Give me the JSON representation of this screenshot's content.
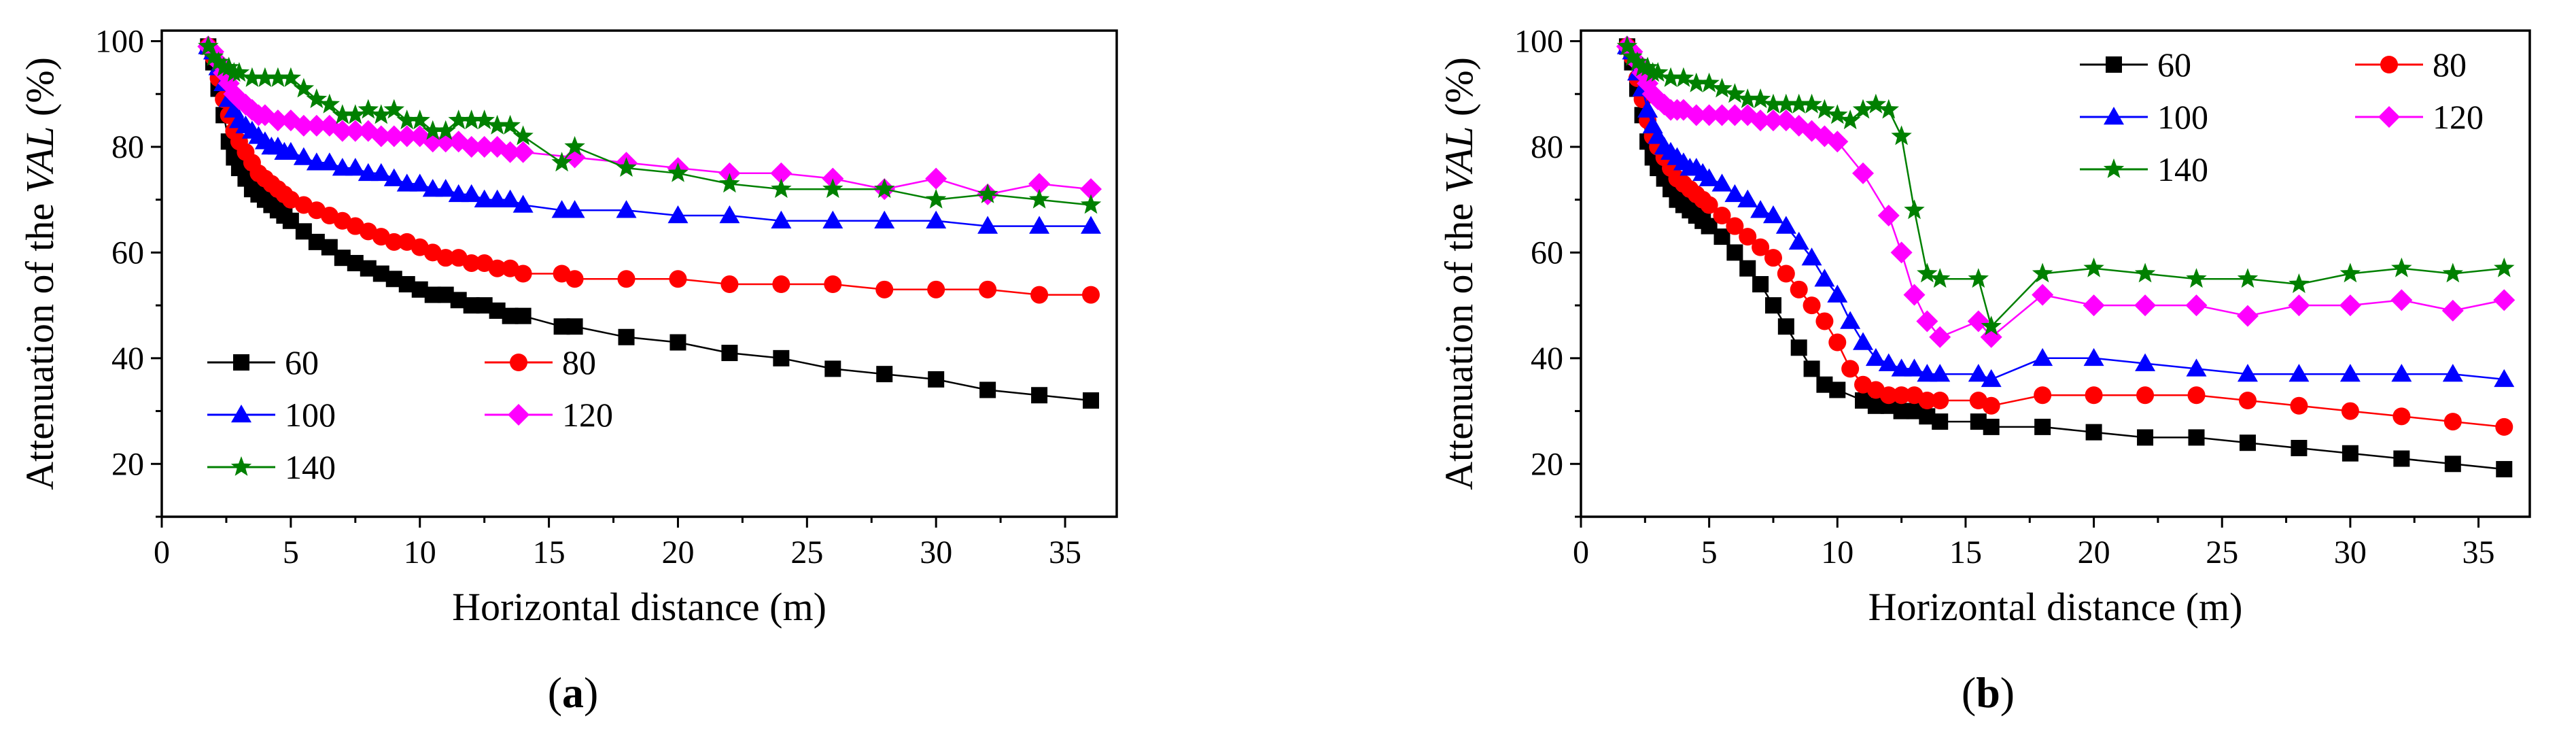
{
  "chart_data": [
    {
      "type": "line",
      "panel_label": "a",
      "xlabel": "Horizontal distance (m)",
      "ylabel_parts": [
        "Attenuation of the ",
        "VAL",
        " (%)"
      ],
      "xlim": [
        0,
        37
      ],
      "ylim": [
        10,
        102
      ],
      "xticks": [
        0,
        5,
        10,
        15,
        20,
        25,
        30,
        35
      ],
      "yticks": [
        20,
        40,
        60,
        80,
        100
      ],
      "legend_position": "lower-left",
      "series": [
        {
          "name": "60",
          "color": "#000000",
          "marker": "square",
          "x": [
            1.8,
            2.0,
            2.2,
            2.4,
            2.6,
            2.8,
            3.0,
            3.25,
            3.5,
            3.75,
            4.0,
            4.25,
            4.5,
            4.75,
            5.0,
            5.5,
            6.0,
            6.5,
            7.0,
            7.5,
            8.0,
            8.5,
            9.0,
            9.5,
            10.0,
            10.5,
            11.0,
            11.5,
            12.0,
            12.5,
            13.0,
            13.5,
            14.0,
            15.5,
            16.0,
            18.0,
            20.0,
            22.0,
            24.0,
            26.0,
            28.0,
            30.0,
            32.0,
            34.0,
            36.0
          ],
          "y": [
            99,
            96,
            91,
            86,
            81,
            78,
            76,
            74,
            72,
            71,
            70,
            69,
            68,
            67,
            66,
            64,
            62,
            61,
            59,
            58,
            57,
            56,
            55,
            54,
            53,
            52,
            52,
            51,
            50,
            50,
            49,
            48,
            48,
            46,
            46,
            44,
            43,
            41,
            40,
            38,
            37,
            36,
            34,
            33,
            32
          ]
        },
        {
          "name": "80",
          "color": "#ff0000",
          "marker": "circle",
          "x": [
            1.8,
            2.0,
            2.2,
            2.4,
            2.6,
            2.8,
            3.0,
            3.25,
            3.5,
            3.75,
            4.0,
            4.25,
            4.5,
            4.75,
            5.0,
            5.5,
            6.0,
            6.5,
            7.0,
            7.5,
            8.0,
            8.5,
            9.0,
            9.5,
            10.0,
            10.5,
            11.0,
            11.5,
            12.0,
            12.5,
            13.0,
            13.5,
            14.0,
            15.5,
            16.0,
            18.0,
            20.0,
            22.0,
            24.0,
            26.0,
            28.0,
            30.0,
            32.0,
            34.0,
            36.0
          ],
          "y": [
            99,
            97,
            93,
            89,
            86,
            83,
            81,
            79,
            77,
            75,
            74,
            73,
            72,
            71,
            70,
            69,
            68,
            67,
            66,
            65,
            64,
            63,
            62,
            62,
            61,
            60,
            59,
            59,
            58,
            58,
            57,
            57,
            56,
            56,
            55,
            55,
            55,
            54,
            54,
            54,
            53,
            53,
            53,
            52,
            52
          ]
        },
        {
          "name": "100",
          "color": "#0000ff",
          "marker": "triangle",
          "x": [
            1.8,
            2.0,
            2.2,
            2.4,
            2.6,
            2.8,
            3.0,
            3.25,
            3.5,
            3.75,
            4.0,
            4.25,
            4.5,
            4.75,
            5.0,
            5.5,
            6.0,
            6.5,
            7.0,
            7.5,
            8.0,
            8.5,
            9.0,
            9.5,
            10.0,
            10.5,
            11.0,
            11.5,
            12.0,
            12.5,
            13.0,
            13.5,
            14.0,
            15.5,
            16.0,
            18.0,
            20.0,
            22.0,
            24.0,
            26.0,
            28.0,
            30.0,
            32.0,
            34.0,
            36.0
          ],
          "y": [
            99,
            98,
            95,
            92,
            89,
            87,
            85,
            84,
            83,
            82,
            81,
            80,
            80,
            79,
            79,
            78,
            77,
            77,
            76,
            76,
            75,
            75,
            74,
            73,
            73,
            72,
            72,
            71,
            71,
            70,
            70,
            70,
            69,
            68,
            68,
            68,
            67,
            67,
            66,
            66,
            66,
            66,
            65,
            65,
            65
          ]
        },
        {
          "name": "120",
          "color": "#ff00ff",
          "marker": "diamond",
          "x": [
            1.8,
            2.0,
            2.2,
            2.4,
            2.6,
            2.8,
            3.0,
            3.25,
            3.5,
            3.75,
            4.0,
            4.5,
            5.0,
            5.5,
            6.0,
            6.5,
            7.0,
            7.5,
            8.0,
            8.5,
            9.0,
            9.5,
            10.0,
            10.5,
            11.0,
            11.5,
            12.0,
            12.5,
            13.0,
            13.5,
            14.0,
            16.0,
            18.0,
            20.0,
            22.0,
            24.0,
            26.0,
            28.0,
            30.0,
            32.0,
            34.0,
            36.0
          ],
          "y": [
            99,
            98,
            96,
            94,
            92,
            90,
            89,
            88,
            87,
            86,
            86,
            85,
            85,
            84,
            84,
            84,
            83,
            83,
            83,
            82,
            82,
            82,
            82,
            81,
            81,
            81,
            80,
            80,
            80,
            79,
            79,
            78,
            77,
            76,
            75,
            75,
            74,
            72,
            74,
            71,
            73,
            72
          ]
        },
        {
          "name": "140",
          "color": "#008000",
          "marker": "star",
          "x": [
            1.8,
            2.0,
            2.2,
            2.4,
            2.6,
            2.8,
            3.0,
            3.5,
            4.0,
            4.5,
            5.0,
            5.5,
            6.0,
            6.5,
            7.0,
            7.5,
            8.0,
            8.5,
            9.0,
            9.5,
            10.0,
            10.5,
            11.0,
            11.5,
            12.0,
            12.5,
            13.0,
            13.5,
            14.0,
            15.5,
            16.0,
            18.0,
            20.0,
            22.0,
            24.0,
            26.0,
            28.0,
            30.0,
            32.0,
            34.0,
            36.0
          ],
          "y": [
            99,
            97,
            96,
            95,
            95,
            94,
            94,
            93,
            93,
            93,
            93,
            91,
            89,
            88,
            86,
            86,
            87,
            86,
            87,
            85,
            85,
            83,
            83,
            85,
            85,
            85,
            84,
            84,
            82,
            77,
            80,
            76,
            75,
            73,
            72,
            72,
            72,
            70,
            71,
            70,
            69
          ]
        }
      ]
    },
    {
      "type": "line",
      "panel_label": "b",
      "xlabel": "Horizontal distance (m)",
      "ylabel_parts": [
        "Attenuation of the ",
        "VAL",
        " (%)"
      ],
      "xlim": [
        0,
        37
      ],
      "ylim": [
        10,
        102
      ],
      "xticks": [
        0,
        5,
        10,
        15,
        20,
        25,
        30,
        35
      ],
      "yticks": [
        20,
        40,
        60,
        80,
        100
      ],
      "legend_position": "top-right",
      "series": [
        {
          "name": "60",
          "color": "#000000",
          "marker": "square",
          "x": [
            1.8,
            2.0,
            2.2,
            2.4,
            2.6,
            2.8,
            3.0,
            3.25,
            3.5,
            3.75,
            4.0,
            4.25,
            4.5,
            4.75,
            5.0,
            5.5,
            6.0,
            6.5,
            7.0,
            7.5,
            8.0,
            8.5,
            9.0,
            9.5,
            10.0,
            11.0,
            11.5,
            12.0,
            12.5,
            13.0,
            13.5,
            14.0,
            15.5,
            16.0,
            18.0,
            20.0,
            22.0,
            24.0,
            26.0,
            28.0,
            30.0,
            32.0,
            34.0,
            36.0
          ],
          "y": [
            99,
            96,
            91,
            86,
            81,
            78,
            76,
            74,
            72,
            70,
            69,
            68,
            67,
            66,
            65,
            63,
            60,
            57,
            54,
            50,
            46,
            42,
            38,
            35,
            34,
            32,
            31,
            31,
            30,
            30,
            29,
            28,
            28,
            27,
            27,
            26,
            25,
            25,
            24,
            23,
            22,
            21,
            20,
            19
          ]
        },
        {
          "name": "80",
          "color": "#ff0000",
          "marker": "circle",
          "x": [
            1.8,
            2.0,
            2.2,
            2.4,
            2.6,
            2.8,
            3.0,
            3.25,
            3.5,
            3.75,
            4.0,
            4.25,
            4.5,
            4.75,
            5.0,
            5.5,
            6.0,
            6.5,
            7.0,
            7.5,
            8.0,
            8.5,
            9.0,
            9.5,
            10.0,
            10.5,
            11.0,
            11.5,
            12.0,
            12.5,
            13.0,
            13.5,
            14.0,
            15.5,
            16.0,
            18.0,
            20.0,
            22.0,
            24.0,
            26.0,
            28.0,
            30.0,
            32.0,
            34.0,
            36.0
          ],
          "y": [
            99,
            97,
            93,
            89,
            85,
            82,
            80,
            78,
            76,
            74,
            73,
            72,
            71,
            70,
            69,
            67,
            65,
            63,
            61,
            59,
            56,
            53,
            50,
            47,
            43,
            38,
            35,
            34,
            33,
            33,
            33,
            32,
            32,
            32,
            31,
            33,
            33,
            33,
            33,
            32,
            31,
            30,
            29,
            28,
            27
          ]
        },
        {
          "name": "100",
          "color": "#0000ff",
          "marker": "triangle",
          "x": [
            1.8,
            2.0,
            2.2,
            2.4,
            2.6,
            2.8,
            3.0,
            3.25,
            3.5,
            3.75,
            4.0,
            4.25,
            4.5,
            4.75,
            5.0,
            5.5,
            6.0,
            6.5,
            7.0,
            7.5,
            8.0,
            8.5,
            9.0,
            9.5,
            10.0,
            10.5,
            11.0,
            11.5,
            12.0,
            12.5,
            13.0,
            13.5,
            14.0,
            15.5,
            16.0,
            18.0,
            20.0,
            22.0,
            24.0,
            26.0,
            28.0,
            30.0,
            32.0,
            34.0,
            36.0
          ],
          "y": [
            99,
            98,
            94,
            91,
            87,
            84,
            82,
            80,
            79,
            78,
            77,
            76,
            76,
            75,
            74,
            73,
            71,
            70,
            68,
            67,
            65,
            62,
            59,
            55,
            52,
            47,
            43,
            40,
            39,
            38,
            38,
            37,
            37,
            37,
            36,
            40,
            40,
            39,
            38,
            37,
            37,
            37,
            37,
            37,
            36
          ]
        },
        {
          "name": "120",
          "color": "#ff00ff",
          "marker": "diamond",
          "x": [
            1.8,
            2.0,
            2.2,
            2.4,
            2.6,
            2.8,
            3.0,
            3.25,
            3.5,
            3.75,
            4.0,
            4.5,
            5.0,
            5.5,
            6.0,
            6.5,
            7.0,
            7.5,
            8.0,
            8.5,
            9.0,
            9.5,
            10.0,
            11.0,
            12.0,
            12.5,
            13.0,
            13.5,
            14.0,
            15.5,
            16.0,
            18.0,
            20.0,
            22.0,
            24.0,
            26.0,
            28.0,
            30.0,
            32.0,
            34.0,
            36.0
          ],
          "y": [
            99,
            98,
            96,
            94,
            92,
            90,
            89,
            88,
            87,
            87,
            87,
            86,
            86,
            86,
            86,
            86,
            85,
            85,
            85,
            84,
            83,
            82,
            81,
            75,
            67,
            60,
            52,
            47,
            44,
            47,
            44,
            52,
            50,
            50,
            50,
            48,
            50,
            50,
            51,
            49,
            51
          ]
        },
        {
          "name": "140",
          "color": "#008000",
          "marker": "star",
          "x": [
            1.8,
            2.0,
            2.2,
            2.4,
            2.6,
            2.8,
            3.0,
            3.5,
            4.0,
            4.5,
            5.0,
            5.5,
            6.0,
            6.5,
            7.0,
            7.5,
            8.0,
            8.5,
            9.0,
            9.5,
            10.0,
            10.5,
            11.0,
            11.5,
            12.0,
            12.5,
            13.0,
            13.5,
            14.0,
            15.5,
            16.0,
            18.0,
            20.0,
            22.0,
            24.0,
            26.0,
            28.0,
            30.0,
            32.0,
            34.0,
            36.0
          ],
          "y": [
            99,
            97,
            96,
            95,
            95,
            94,
            94,
            93,
            93,
            92,
            92,
            91,
            90,
            89,
            89,
            88,
            88,
            88,
            88,
            87,
            86,
            85,
            87,
            88,
            87,
            82,
            68,
            56,
            55,
            55,
            46,
            56,
            57,
            56,
            55,
            55,
            54,
            56,
            57,
            56,
            57
          ]
        }
      ]
    }
  ]
}
